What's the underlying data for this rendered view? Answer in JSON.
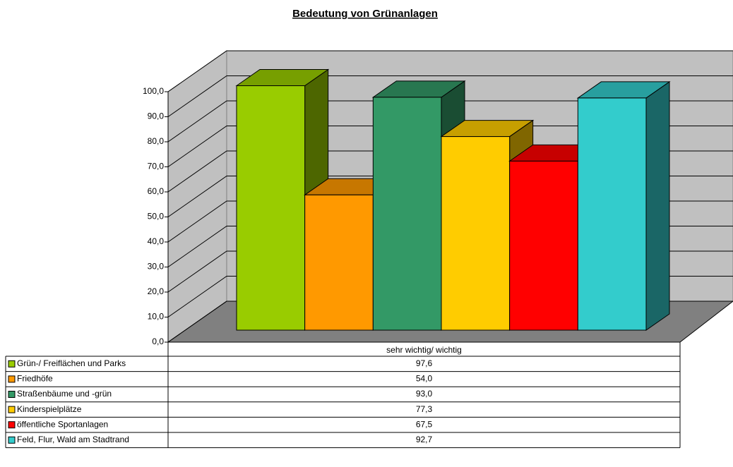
{
  "chart_data": {
    "type": "bar3d",
    "title": "Bedeutung von Grünanlagen",
    "categories": [
      "sehr wichtig/ wichtig"
    ],
    "series": [
      {
        "name": "Grün-/ Freiflächen und Parks",
        "color": "#99cc00",
        "values": [
          97.6
        ],
        "value_labels": [
          "97,6"
        ]
      },
      {
        "name": "Friedhöfe",
        "color": "#ff9900",
        "values": [
          54.0
        ],
        "value_labels": [
          "54,0"
        ]
      },
      {
        "name": "Straßenbäume und -grün",
        "color": "#339966",
        "values": [
          93.0
        ],
        "value_labels": [
          "93,0"
        ]
      },
      {
        "name": "Kinderspielplätze",
        "color": "#ffcc00",
        "values": [
          77.3
        ],
        "value_labels": [
          "77,3"
        ]
      },
      {
        "name": "öffentliche Sportanlagen",
        "color": "#ff0000",
        "values": [
          67.5
        ],
        "value_labels": [
          "67,5"
        ]
      },
      {
        "name": "Feld, Flur, Wald am Stadtrand",
        "color": "#33cccc",
        "values": [
          92.7
        ],
        "value_labels": [
          "92,7"
        ]
      }
    ],
    "ylim": [
      0,
      100
    ],
    "yticks": [
      {
        "value": 0,
        "label": "0,0"
      },
      {
        "value": 10,
        "label": "10,0"
      },
      {
        "value": 20,
        "label": "20,0"
      },
      {
        "value": 30,
        "label": "30,0"
      },
      {
        "value": 40,
        "label": "40,0"
      },
      {
        "value": 50,
        "label": "50,0"
      },
      {
        "value": 60,
        "label": "60,0"
      },
      {
        "value": 70,
        "label": "70,0"
      },
      {
        "value": 80,
        "label": "80,0"
      },
      {
        "value": 90,
        "label": "90,0"
      },
      {
        "value": 100,
        "label": "100,0"
      }
    ],
    "grid": true
  }
}
